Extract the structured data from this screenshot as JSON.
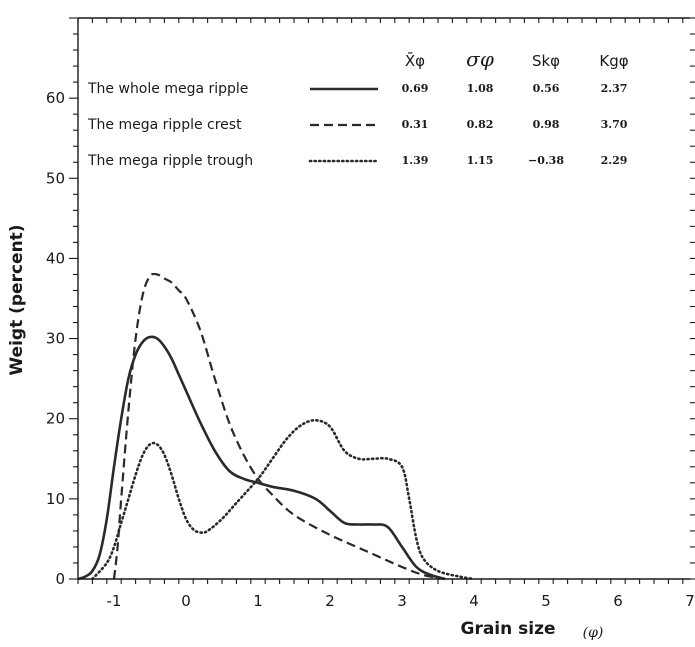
{
  "chart_data": {
    "type": "line",
    "xlabel": "Grain size",
    "xunit": "(φ)",
    "ylabel": "Weigt  (percent)",
    "xlim": [
      -1.5,
      7
    ],
    "ylim": [
      0,
      70
    ],
    "xticks": [
      -1,
      0,
      1,
      2,
      3,
      4,
      5,
      6,
      7
    ],
    "yticks": [
      0,
      10,
      20,
      30,
      40,
      50,
      60
    ],
    "legend_placement": "top-left",
    "stat_headers": [
      "X̄φ",
      "σφ",
      "Skφ",
      "Kgφ"
    ],
    "series": [
      {
        "name": "The whole mega ripple",
        "style": "solid",
        "stats": [
          "0.69",
          "1.08",
          "0.56",
          "2.37"
        ],
        "x": [
          -1.5,
          -1.4,
          -1.3,
          -1.2,
          -1.1,
          -1.0,
          -0.9,
          -0.8,
          -0.7,
          -0.6,
          -0.5,
          -0.4,
          -0.3,
          -0.2,
          -0.1,
          0.0,
          0.2,
          0.4,
          0.6,
          0.8,
          1.0,
          1.2,
          1.5,
          1.8,
          2.0,
          2.2,
          2.4,
          2.6,
          2.8,
          3.0,
          3.2,
          3.4,
          3.6
        ],
        "y": [
          0,
          0.3,
          1,
          3,
          7.5,
          14,
          20,
          25,
          28,
          29.6,
          30.2,
          30,
          29,
          27.5,
          25.5,
          23.5,
          19.5,
          16,
          13.5,
          12.5,
          12,
          11.5,
          11,
          10,
          8.5,
          7,
          6.8,
          6.8,
          6.5,
          4,
          1.5,
          0.5,
          0
        ]
      },
      {
        "name": "The mega ripple  crest",
        "style": "dashed",
        "stats": [
          "0.31",
          "0.82",
          "0.98",
          "3.70"
        ],
        "x": [
          -1.0,
          -0.95,
          -0.9,
          -0.8,
          -0.7,
          -0.6,
          -0.5,
          -0.4,
          -0.3,
          -0.2,
          -0.1,
          0.0,
          0.2,
          0.4,
          0.6,
          0.8,
          1.0,
          1.2,
          1.5,
          2.0,
          2.5,
          3.0,
          3.3,
          3.6
        ],
        "y": [
          0,
          4,
          10,
          21,
          30,
          35.5,
          37.8,
          38,
          37.5,
          37,
          36,
          35,
          31,
          25,
          19.5,
          15.5,
          12.5,
          10.5,
          8,
          5.5,
          3.5,
          1.5,
          0.5,
          0
        ]
      },
      {
        "name": "The mega ripple  trough",
        "style": "dotted",
        "stats": [
          "1.39",
          "1.15",
          "−0.38",
          "2.29"
        ],
        "x": [
          -1.3,
          -1.1,
          -1.0,
          -0.9,
          -0.8,
          -0.7,
          -0.6,
          -0.5,
          -0.4,
          -0.3,
          -0.2,
          -0.1,
          0.0,
          0.1,
          0.2,
          0.3,
          0.5,
          0.7,
          1.0,
          1.2,
          1.4,
          1.6,
          1.8,
          2.0,
          2.2,
          2.4,
          2.6,
          2.8,
          3.0,
          3.1,
          3.2,
          3.3,
          3.5,
          3.8,
          4.0
        ],
        "y": [
          0,
          2,
          4,
          7,
          10,
          13,
          15.5,
          16.8,
          16.8,
          15.5,
          13,
          10,
          7.5,
          6.2,
          5.8,
          6,
          7.5,
          9.5,
          12.5,
          15,
          17.5,
          19.2,
          19.8,
          19,
          16,
          15,
          15,
          15,
          14,
          10,
          5,
          2.5,
          1,
          0.3,
          0
        ]
      }
    ]
  }
}
